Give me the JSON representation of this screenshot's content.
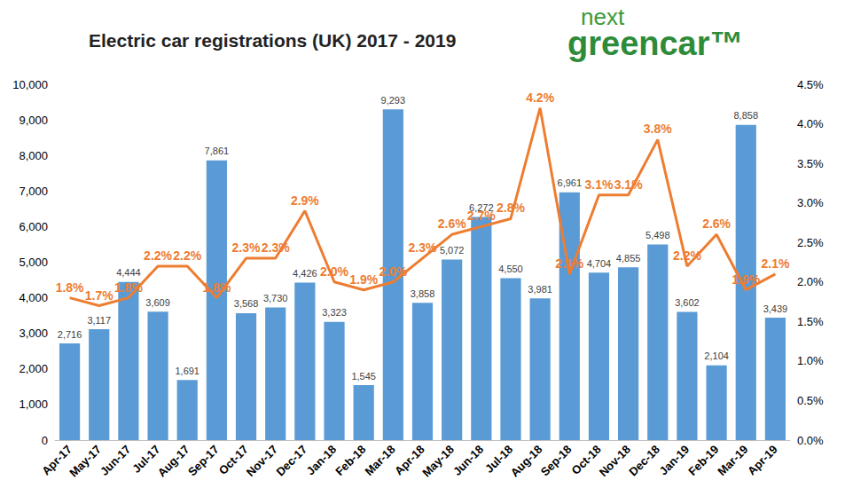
{
  "chart_data": {
    "type": "bar",
    "title": "Electric car registrations (UK) 2017 - 2019",
    "annotations": [
      "next",
      "greencar™"
    ],
    "categories": [
      "Apr-17",
      "May-17",
      "Jun-17",
      "Jul-17",
      "Aug-17",
      "Sep-17",
      "Oct-17",
      "Nov-17",
      "Dec-17",
      "Jan-18",
      "Feb-18",
      "Mar-18",
      "Apr-18",
      "May-18",
      "Jun-18",
      "Jul-18",
      "Aug-18",
      "Sep-18",
      "Oct-18",
      "Nov-18",
      "Dec-18",
      "Jan-19",
      "Feb-19",
      "Mar-19",
      "Apr-19"
    ],
    "series": [
      {
        "type": "bar",
        "color": "#5b9bd5",
        "values": [
          2716,
          3117,
          4444,
          3609,
          1691,
          7861,
          3568,
          3730,
          4426,
          3323,
          1545,
          9293,
          3858,
          5072,
          6272,
          4550,
          3981,
          6961,
          4704,
          4855,
          5498,
          3602,
          2104,
          8858,
          3439
        ],
        "value_labels": [
          "2,716",
          "3,117",
          "4,444",
          "3,609",
          "1,691",
          "7,861",
          "3,568",
          "3,730",
          "4,426",
          "3,323",
          "1,545",
          "9,293",
          "3,858",
          "5,072",
          "6,272",
          "4,550",
          "3,981",
          "6,961",
          "4,704",
          "4,855",
          "5,498",
          "3,602",
          "2,104",
          "8,858",
          "3,439"
        ]
      },
      {
        "type": "line",
        "axis": "y2",
        "color": "#ed7d31",
        "marker": "none",
        "values": [
          1.8,
          1.7,
          1.8,
          2.2,
          2.2,
          1.8,
          2.3,
          2.3,
          2.9,
          2.0,
          1.9,
          2.0,
          2.3,
          2.6,
          2.7,
          2.8,
          4.2,
          2.1,
          3.1,
          3.1,
          3.8,
          2.2,
          2.6,
          1.9,
          2.1
        ],
        "value_labels": [
          "1.8%",
          "1.7%",
          "1.8%",
          "2.2%",
          "2.2%",
          "1.8%",
          "2.3%",
          "2.3%",
          "2.9%",
          "2.0%",
          "1.9%",
          "2.0%",
          "2.3%",
          "2.6%",
          "2.7%",
          "2.8%",
          "4.2%",
          "2.1%",
          "3.1%",
          "3.1%",
          "3.8%",
          "2.2%",
          "2.6%",
          "1.9%",
          "2.1%"
        ]
      }
    ],
    "ylim": [
      0,
      10000
    ],
    "yticks": [
      0,
      {
        "value": 1000,
        "label": "1,000"
      },
      {
        "value": 2000,
        "label": "2,000"
      },
      {
        "value": 3000,
        "label": "3,000"
      },
      {
        "value": 4000,
        "label": "4,000"
      },
      {
        "value": 5000,
        "label": "5,000"
      },
      {
        "value": 6000,
        "label": "6,000"
      },
      {
        "value": 7000,
        "label": "7,000"
      },
      {
        "value": 8000,
        "label": "8,000"
      },
      {
        "value": 9000,
        "label": "9,000"
      },
      {
        "value": 10000,
        "label": "10,000"
      }
    ],
    "y2lim": [
      0,
      4.5
    ],
    "y2ticks": [
      {
        "value": 0,
        "label": "0.0%"
      },
      {
        "value": 0.5,
        "label": "0.5%"
      },
      {
        "value": 1,
        "label": "1.0%"
      },
      {
        "value": 1.5,
        "label": "1.5%"
      },
      {
        "value": 2,
        "label": "2.0%"
      },
      {
        "value": 2.5,
        "label": "2.5%"
      },
      {
        "value": 3,
        "label": "3.0%"
      },
      {
        "value": 3.5,
        "label": "3.5%"
      },
      {
        "value": 4,
        "label": "4.0%"
      },
      {
        "value": 4.5,
        "label": "4.5%"
      }
    ],
    "grid": false,
    "data_labels": true
  }
}
